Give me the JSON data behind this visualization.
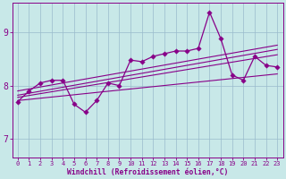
{
  "title": "",
  "xlabel": "Windchill (Refroidissement éolien,°C)",
  "ylabel": "",
  "bg_color": "#c8e8e8",
  "grid_color": "#99bbcc",
  "line_color": "#880088",
  "x_ticks": [
    0,
    1,
    2,
    3,
    4,
    5,
    6,
    7,
    8,
    9,
    10,
    11,
    12,
    13,
    14,
    15,
    16,
    17,
    18,
    19,
    20,
    21,
    22,
    23
  ],
  "y_ticks": [
    7,
    8,
    9
  ],
  "ylim": [
    6.65,
    9.55
  ],
  "xlim": [
    -0.5,
    23.5
  ],
  "series1": [
    7.7,
    7.9,
    8.05,
    8.1,
    8.1,
    7.65,
    7.5,
    7.72,
    8.05,
    8.0,
    8.48,
    8.45,
    8.55,
    8.6,
    8.65,
    8.65,
    8.7,
    9.38,
    8.88,
    8.2,
    8.1,
    8.55,
    8.38,
    8.35
  ],
  "trend1": [
    7.82,
    8.68
  ],
  "trend2": [
    7.9,
    8.76
  ],
  "trend3": [
    7.78,
    8.58
  ],
  "trend4": [
    7.72,
    8.22
  ],
  "lw_main": 0.9,
  "lw_trend": 0.8,
  "marker_size": 2.8,
  "xlabel_fontsize": 5.8,
  "tick_fontsize_x": 5.0,
  "tick_fontsize_y": 7.0
}
